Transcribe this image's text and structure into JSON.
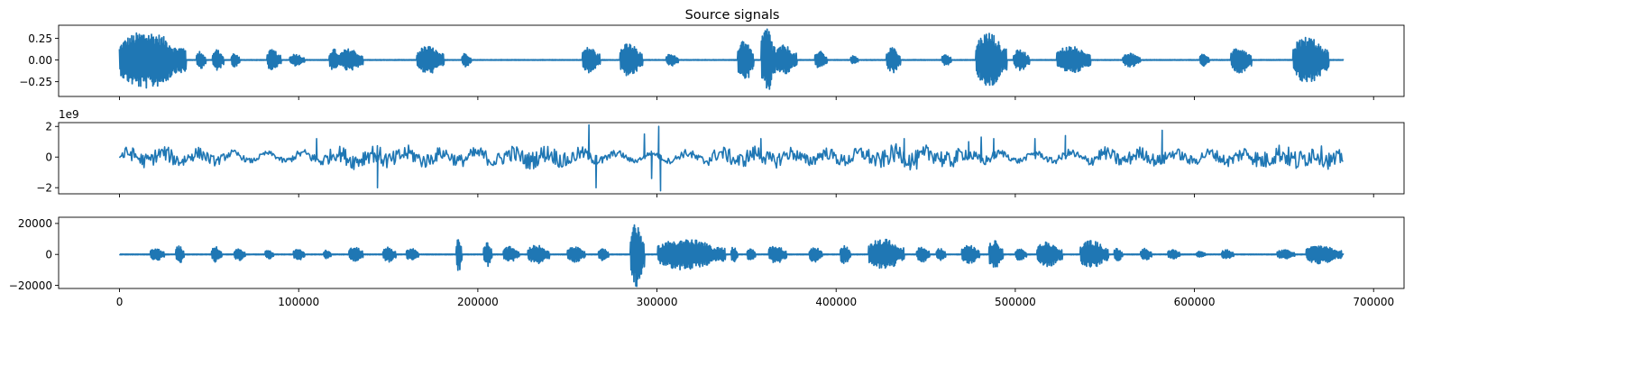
{
  "chart_data": {
    "type": "line",
    "title": "Source signals",
    "series_color": "#1f77b4",
    "x_range": [
      0,
      683000
    ],
    "xlim": [
      -34000,
      717000
    ],
    "xticks": [
      0,
      100000,
      200000,
      300000,
      400000,
      500000,
      600000,
      700000
    ],
    "xtick_labels": [
      "0",
      "100000",
      "200000",
      "300000",
      "400000",
      "500000",
      "600000",
      "700000"
    ],
    "shared_x": true,
    "grid": false,
    "panels": [
      {
        "name": "signal-1",
        "title": "Source signals",
        "ylim": [
          -0.42,
          0.4
        ],
        "yticks": [
          0.25,
          0.0,
          -0.25
        ],
        "ytick_labels": [
          "0.25",
          "0.00",
          "−0.25"
        ],
        "offset_text": "",
        "kind": "speech",
        "bursts": [
          {
            "start": 0,
            "end": 37000,
            "amp": 0.33
          },
          {
            "start": 43000,
            "end": 48000,
            "amp": 0.1
          },
          {
            "start": 52000,
            "end": 58000,
            "amp": 0.12
          },
          {
            "start": 62000,
            "end": 67000,
            "amp": 0.08
          },
          {
            "start": 82000,
            "end": 90000,
            "amp": 0.12
          },
          {
            "start": 95000,
            "end": 103000,
            "amp": 0.07
          },
          {
            "start": 117000,
            "end": 123000,
            "amp": 0.13
          },
          {
            "start": 123000,
            "end": 136000,
            "amp": 0.13
          },
          {
            "start": 166000,
            "end": 181000,
            "amp": 0.16
          },
          {
            "start": 191000,
            "end": 196000,
            "amp": 0.08
          },
          {
            "start": 258000,
            "end": 268000,
            "amp": 0.15
          },
          {
            "start": 279000,
            "end": 292000,
            "amp": 0.19
          },
          {
            "start": 305000,
            "end": 312000,
            "amp": 0.07
          },
          {
            "start": 345000,
            "end": 354000,
            "amp": 0.25
          },
          {
            "start": 358000,
            "end": 366000,
            "amp": 0.38
          },
          {
            "start": 366000,
            "end": 378000,
            "amp": 0.17
          },
          {
            "start": 388000,
            "end": 395000,
            "amp": 0.1
          },
          {
            "start": 408000,
            "end": 412000,
            "amp": 0.05
          },
          {
            "start": 428000,
            "end": 436000,
            "amp": 0.15
          },
          {
            "start": 459000,
            "end": 464000,
            "amp": 0.07
          },
          {
            "start": 478000,
            "end": 495000,
            "amp": 0.32
          },
          {
            "start": 499000,
            "end": 508000,
            "amp": 0.12
          },
          {
            "start": 523000,
            "end": 542000,
            "amp": 0.16
          },
          {
            "start": 560000,
            "end": 570000,
            "amp": 0.08
          },
          {
            "start": 603000,
            "end": 608000,
            "amp": 0.07
          },
          {
            "start": 620000,
            "end": 632000,
            "amp": 0.15
          },
          {
            "start": 655000,
            "end": 675000,
            "amp": 0.27
          }
        ]
      },
      {
        "name": "signal-2",
        "title": "",
        "ylim": [
          -2.4,
          2.25
        ],
        "yticks": [
          2,
          0,
          -2
        ],
        "ytick_labels": [
          "2",
          "0",
          "−2"
        ],
        "offset_text": "1e9",
        "kind": "noise",
        "spikes": [
          {
            "x": 110000,
            "v": 1.2
          },
          {
            "x": 144000,
            "v": -2.0
          },
          {
            "x": 262000,
            "v": 2.1
          },
          {
            "x": 266000,
            "v": -2.0
          },
          {
            "x": 293000,
            "v": 1.5
          },
          {
            "x": 297000,
            "v": -1.4
          },
          {
            "x": 301000,
            "v": 2.0
          },
          {
            "x": 302000,
            "v": -2.2
          },
          {
            "x": 358000,
            "v": 1.2
          },
          {
            "x": 438000,
            "v": 1.2
          },
          {
            "x": 474000,
            "v": 1.0
          },
          {
            "x": 481000,
            "v": 1.3
          },
          {
            "x": 488000,
            "v": 1.2
          },
          {
            "x": 511000,
            "v": 1.2
          },
          {
            "x": 528000,
            "v": 1.4
          },
          {
            "x": 582000,
            "v": 1.75
          }
        ]
      },
      {
        "name": "signal-3",
        "title": "",
        "ylim": [
          -22000,
          24000
        ],
        "yticks": [
          20000,
          0,
          -20000
        ],
        "ytick_labels": [
          "20000",
          "0",
          "−20000"
        ],
        "offset_text": "",
        "kind": "speech",
        "bursts": [
          {
            "start": 17000,
            "end": 25000,
            "amp": 4000
          },
          {
            "start": 31000,
            "end": 36000,
            "amp": 6000
          },
          {
            "start": 51000,
            "end": 57000,
            "amp": 5000
          },
          {
            "start": 64000,
            "end": 70000,
            "amp": 4000
          },
          {
            "start": 81000,
            "end": 86000,
            "amp": 3000
          },
          {
            "start": 97000,
            "end": 103000,
            "amp": 4000
          },
          {
            "start": 114000,
            "end": 118000,
            "amp": 3000
          },
          {
            "start": 128000,
            "end": 136000,
            "amp": 5000
          },
          {
            "start": 147000,
            "end": 154000,
            "amp": 5000
          },
          {
            "start": 160000,
            "end": 167000,
            "amp": 4000
          },
          {
            "start": 188000,
            "end": 191000,
            "amp": 12000
          },
          {
            "start": 203000,
            "end": 208000,
            "amp": 8000
          },
          {
            "start": 214000,
            "end": 223000,
            "amp": 5000
          },
          {
            "start": 228000,
            "end": 240000,
            "amp": 6000
          },
          {
            "start": 250000,
            "end": 260000,
            "amp": 5000
          },
          {
            "start": 267000,
            "end": 273000,
            "amp": 4000
          },
          {
            "start": 285000,
            "end": 293000,
            "amp": 21000
          },
          {
            "start": 300000,
            "end": 338000,
            "amp": 10000
          },
          {
            "start": 341000,
            "end": 345000,
            "amp": 5000
          },
          {
            "start": 350000,
            "end": 355000,
            "amp": 4000
          },
          {
            "start": 362000,
            "end": 372000,
            "amp": 6000
          },
          {
            "start": 385000,
            "end": 392000,
            "amp": 5000
          },
          {
            "start": 402000,
            "end": 408000,
            "amp": 6000
          },
          {
            "start": 418000,
            "end": 438000,
            "amp": 10000
          },
          {
            "start": 445000,
            "end": 452000,
            "amp": 5000
          },
          {
            "start": 456000,
            "end": 461000,
            "amp": 4000
          },
          {
            "start": 470000,
            "end": 480000,
            "amp": 6000
          },
          {
            "start": 485000,
            "end": 493000,
            "amp": 9000
          },
          {
            "start": 500000,
            "end": 506000,
            "amp": 4000
          },
          {
            "start": 512000,
            "end": 526000,
            "amp": 8000
          },
          {
            "start": 536000,
            "end": 552000,
            "amp": 9000
          },
          {
            "start": 555000,
            "end": 560000,
            "amp": 4000
          },
          {
            "start": 570000,
            "end": 576000,
            "amp": 4000
          },
          {
            "start": 585000,
            "end": 592000,
            "amp": 3000
          },
          {
            "start": 601000,
            "end": 606000,
            "amp": 2000
          },
          {
            "start": 615000,
            "end": 622000,
            "amp": 3000
          },
          {
            "start": 646000,
            "end": 656000,
            "amp": 3000
          },
          {
            "start": 662000,
            "end": 682000,
            "amp": 6000
          }
        ]
      }
    ]
  }
}
